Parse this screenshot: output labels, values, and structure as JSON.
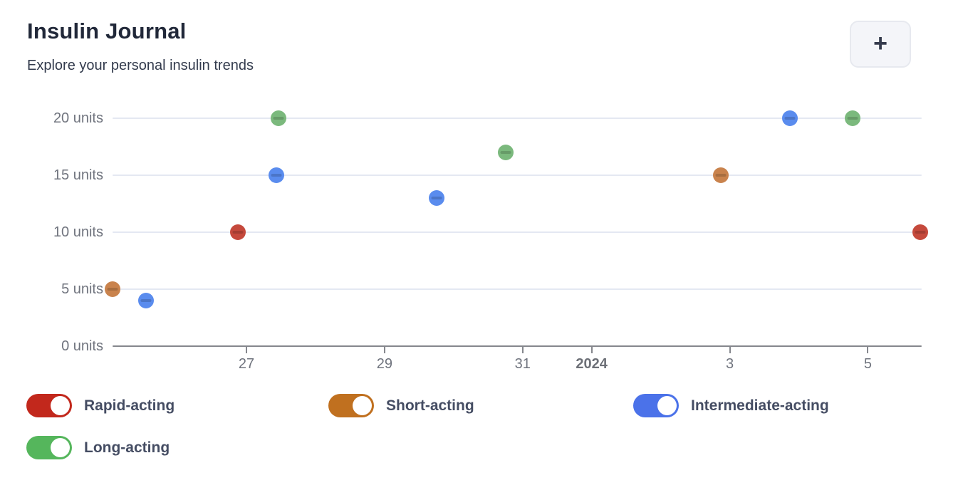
{
  "app": {
    "title": "Insulin Journal",
    "subtitle": "Explore your personal insulin trends",
    "add_button_label": "+"
  },
  "chart_data": {
    "type": "scatter",
    "title": "Insulin Journal",
    "ylabel": "units",
    "x_unit": "date (day index: 25-31 = Dec 25-31 2023, 32 = Jan 1 2024 labeled '2024', 34 = Jan 3, 36 = Jan 5)",
    "x_domain": [
      25.06,
      36.78
    ],
    "y_domain": [
      0,
      20
    ],
    "grid": true,
    "legend_position": "bottom",
    "y_ticks": [
      {
        "value": 0,
        "label": "0 units"
      },
      {
        "value": 5,
        "label": "5 units"
      },
      {
        "value": 10,
        "label": "10 units"
      },
      {
        "value": 15,
        "label": "15 units"
      },
      {
        "value": 20,
        "label": "20 units"
      }
    ],
    "x_ticks": [
      {
        "value": 27,
        "label": "27"
      },
      {
        "value": 29,
        "label": "29"
      },
      {
        "value": 31,
        "label": "31"
      },
      {
        "value": 32,
        "label": "2024",
        "bold": true
      },
      {
        "value": 34,
        "label": "3"
      },
      {
        "value": 36,
        "label": "5"
      }
    ],
    "series": [
      {
        "name": "Rapid-acting",
        "color": "#c5493c",
        "points": [
          {
            "x": 26.88,
            "y": 10
          },
          {
            "x": 36.76,
            "y": 10
          }
        ]
      },
      {
        "name": "Short-acting",
        "color": "#c9834d",
        "points": [
          {
            "x": 25.06,
            "y": 5
          },
          {
            "x": 33.87,
            "y": 15
          }
        ]
      },
      {
        "name": "Intermediate-acting",
        "color": "#5a8cee",
        "points": [
          {
            "x": 25.55,
            "y": 4
          },
          {
            "x": 27.43,
            "y": 15
          },
          {
            "x": 29.75,
            "y": 13
          },
          {
            "x": 34.87,
            "y": 20
          }
        ]
      },
      {
        "name": "Long-acting",
        "color": "#7bb97d",
        "points": [
          {
            "x": 27.46,
            "y": 20
          },
          {
            "x": 30.75,
            "y": 17
          },
          {
            "x": 35.78,
            "y": 20
          }
        ]
      }
    ]
  },
  "legend": {
    "items": [
      {
        "label": "Rapid-acting",
        "toggle_color": "#c2281c",
        "state": "on"
      },
      {
        "label": "Short-acting",
        "toggle_color": "#c0701f",
        "state": "on"
      },
      {
        "label": "Intermediate-acting",
        "toggle_color": "#4b72e9",
        "state": "on"
      },
      {
        "label": "Long-acting",
        "toggle_color": "#55b65c",
        "state": "on"
      }
    ]
  },
  "colors": {
    "grid": "#e4e8f2",
    "axis": "#85878d",
    "tick_label": "#70747e",
    "title": "#212839",
    "legend_label": "#454d63",
    "button_bg": "#f4f5f9"
  }
}
